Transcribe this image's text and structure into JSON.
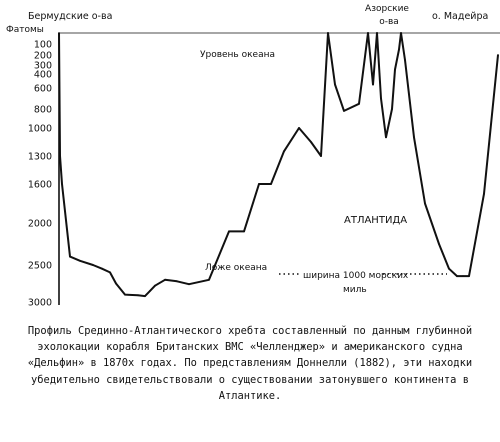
{
  "chart_data": {
    "type": "line",
    "y_unit": "Фатомы",
    "y_ticks": [
      100,
      200,
      300,
      400,
      600,
      800,
      1000,
      1300,
      1600,
      2000,
      2500,
      3000
    ],
    "ylim": [
      0,
      3000
    ],
    "y_axis": "inverted",
    "top_labels": {
      "left": "Бермудские о-ва",
      "middle": "Азорские о-ва",
      "right": "о. Мадейра"
    },
    "annotations": {
      "ocean_level": "Уровень океана",
      "ocean_floor": "Ложе океана",
      "atlantis": "АТЛАНТИДА",
      "width_line1": "ширина 1000 морских",
      "width_line2": "миль"
    },
    "x": [
      0,
      1,
      3,
      11,
      21,
      34,
      43,
      51,
      57,
      66,
      79,
      86,
      91,
      96,
      106,
      118,
      130,
      150,
      170,
      185,
      200,
      212,
      225,
      240,
      252,
      262,
      269,
      276,
      285,
      300,
      309,
      314,
      318,
      322,
      327,
      333,
      336,
      340,
      342,
      346,
      355,
      366,
      380,
      390,
      398,
      404,
      410,
      425,
      439
    ],
    "y": [
      0,
      1300,
      1600,
      2400,
      2450,
      2500,
      2550,
      2600,
      2750,
      2900,
      2910,
      2920,
      2850,
      2780,
      2700,
      2720,
      2760,
      2700,
      2100,
      2100,
      1600,
      1600,
      1250,
      1000,
      1150,
      1300,
      0,
      550,
      820,
      750,
      0,
      550,
      0,
      700,
      1100,
      800,
      350,
      150,
      0,
      250,
      1100,
      1800,
      2250,
      2550,
      2650,
      2650,
      2650,
      1700,
      200
    ]
  },
  "caption": "Профиль Срединно-Атлантического хребта составленный по данным глубинной эхолокации корабля Британских ВМС «Челленджер» и американского судна «Дельфин» в 1870х годах. По представлениям Доннелли (1882), эти находки убедительно свидетельствовали о существовании затонувшего континента в Атлантике."
}
